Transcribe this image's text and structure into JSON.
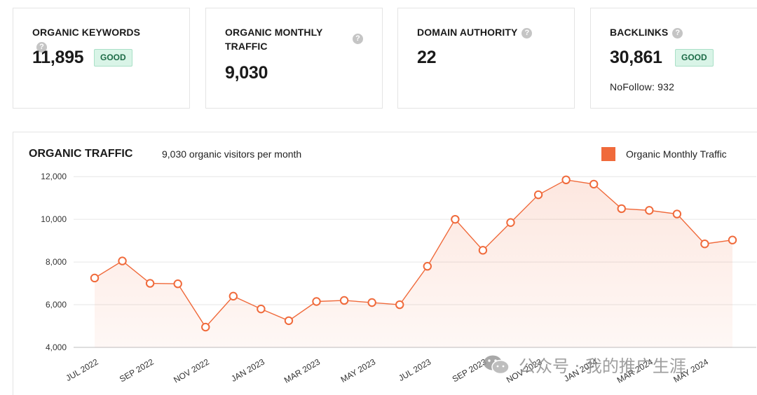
{
  "metrics": {
    "organic_keywords": {
      "label": "ORGANIC KEYWORDS",
      "value": "11,895",
      "badge": "GOOD"
    },
    "organic_traffic": {
      "label": "ORGANIC MONTHLY TRAFFIC",
      "value": "9,030"
    },
    "domain_authority": {
      "label": "DOMAIN AUTHORITY",
      "value": "22"
    },
    "backlinks": {
      "label": "BACKLINKS",
      "value": "30,861",
      "badge": "GOOD",
      "nofollow": "NoFollow: 932"
    }
  },
  "help_glyph": "?",
  "chart": {
    "title": "ORGANIC TRAFFIC",
    "subtitle": "9,030 organic visitors per month",
    "legend_label": "Organic Monthly Traffic"
  },
  "watermark": {
    "text": "公众号 · 我的推广生涯",
    "icon": "wechat-icon"
  },
  "colors": {
    "accent": "#f06a3b",
    "badge_bg": "#d9f4e7",
    "badge_text": "#1d6b47"
  },
  "chart_data": {
    "type": "area",
    "title": "ORGANIC TRAFFIC",
    "series": [
      {
        "name": "Organic Monthly Traffic",
        "values": [
          7250,
          8050,
          7000,
          6980,
          4950,
          6400,
          5800,
          5250,
          6150,
          6200,
          6100,
          6000,
          7800,
          10000,
          8550,
          9850,
          11150,
          11850,
          11650,
          10500,
          10420,
          10250,
          8850,
          9030
        ]
      }
    ],
    "x": [
      "JUL 2022",
      "AUG 2022",
      "SEP 2022",
      "OCT 2022",
      "NOV 2022",
      "DEC 2022",
      "JAN 2023",
      "FEB 2023",
      "MAR 2023",
      "APR 2023",
      "MAY 2023",
      "JUN 2023",
      "JUL 2023",
      "AUG 2023",
      "SEP 2023",
      "OCT 2023",
      "NOV 2023",
      "DEC 2023",
      "JAN 2024",
      "FEB 2024",
      "MAR 2024",
      "APR 2024",
      "MAY 2024",
      "JUN 2024"
    ],
    "x_tick_labels": [
      "JUL 2022",
      "SEP 2022",
      "NOV 2022",
      "JAN 2023",
      "MAR 2023",
      "MAY 2023",
      "JUL 2023",
      "SEP 2023",
      "NOV 2023",
      "JAN 2024",
      "MAR 2024",
      "MAY 2024"
    ],
    "y_ticks": [
      "4,000",
      "6,000",
      "8,000",
      "10,000",
      "12,000"
    ],
    "y_tick_values": [
      4000,
      6000,
      8000,
      10000,
      12000
    ],
    "ylim": [
      4000,
      12500
    ],
    "grid": true
  }
}
